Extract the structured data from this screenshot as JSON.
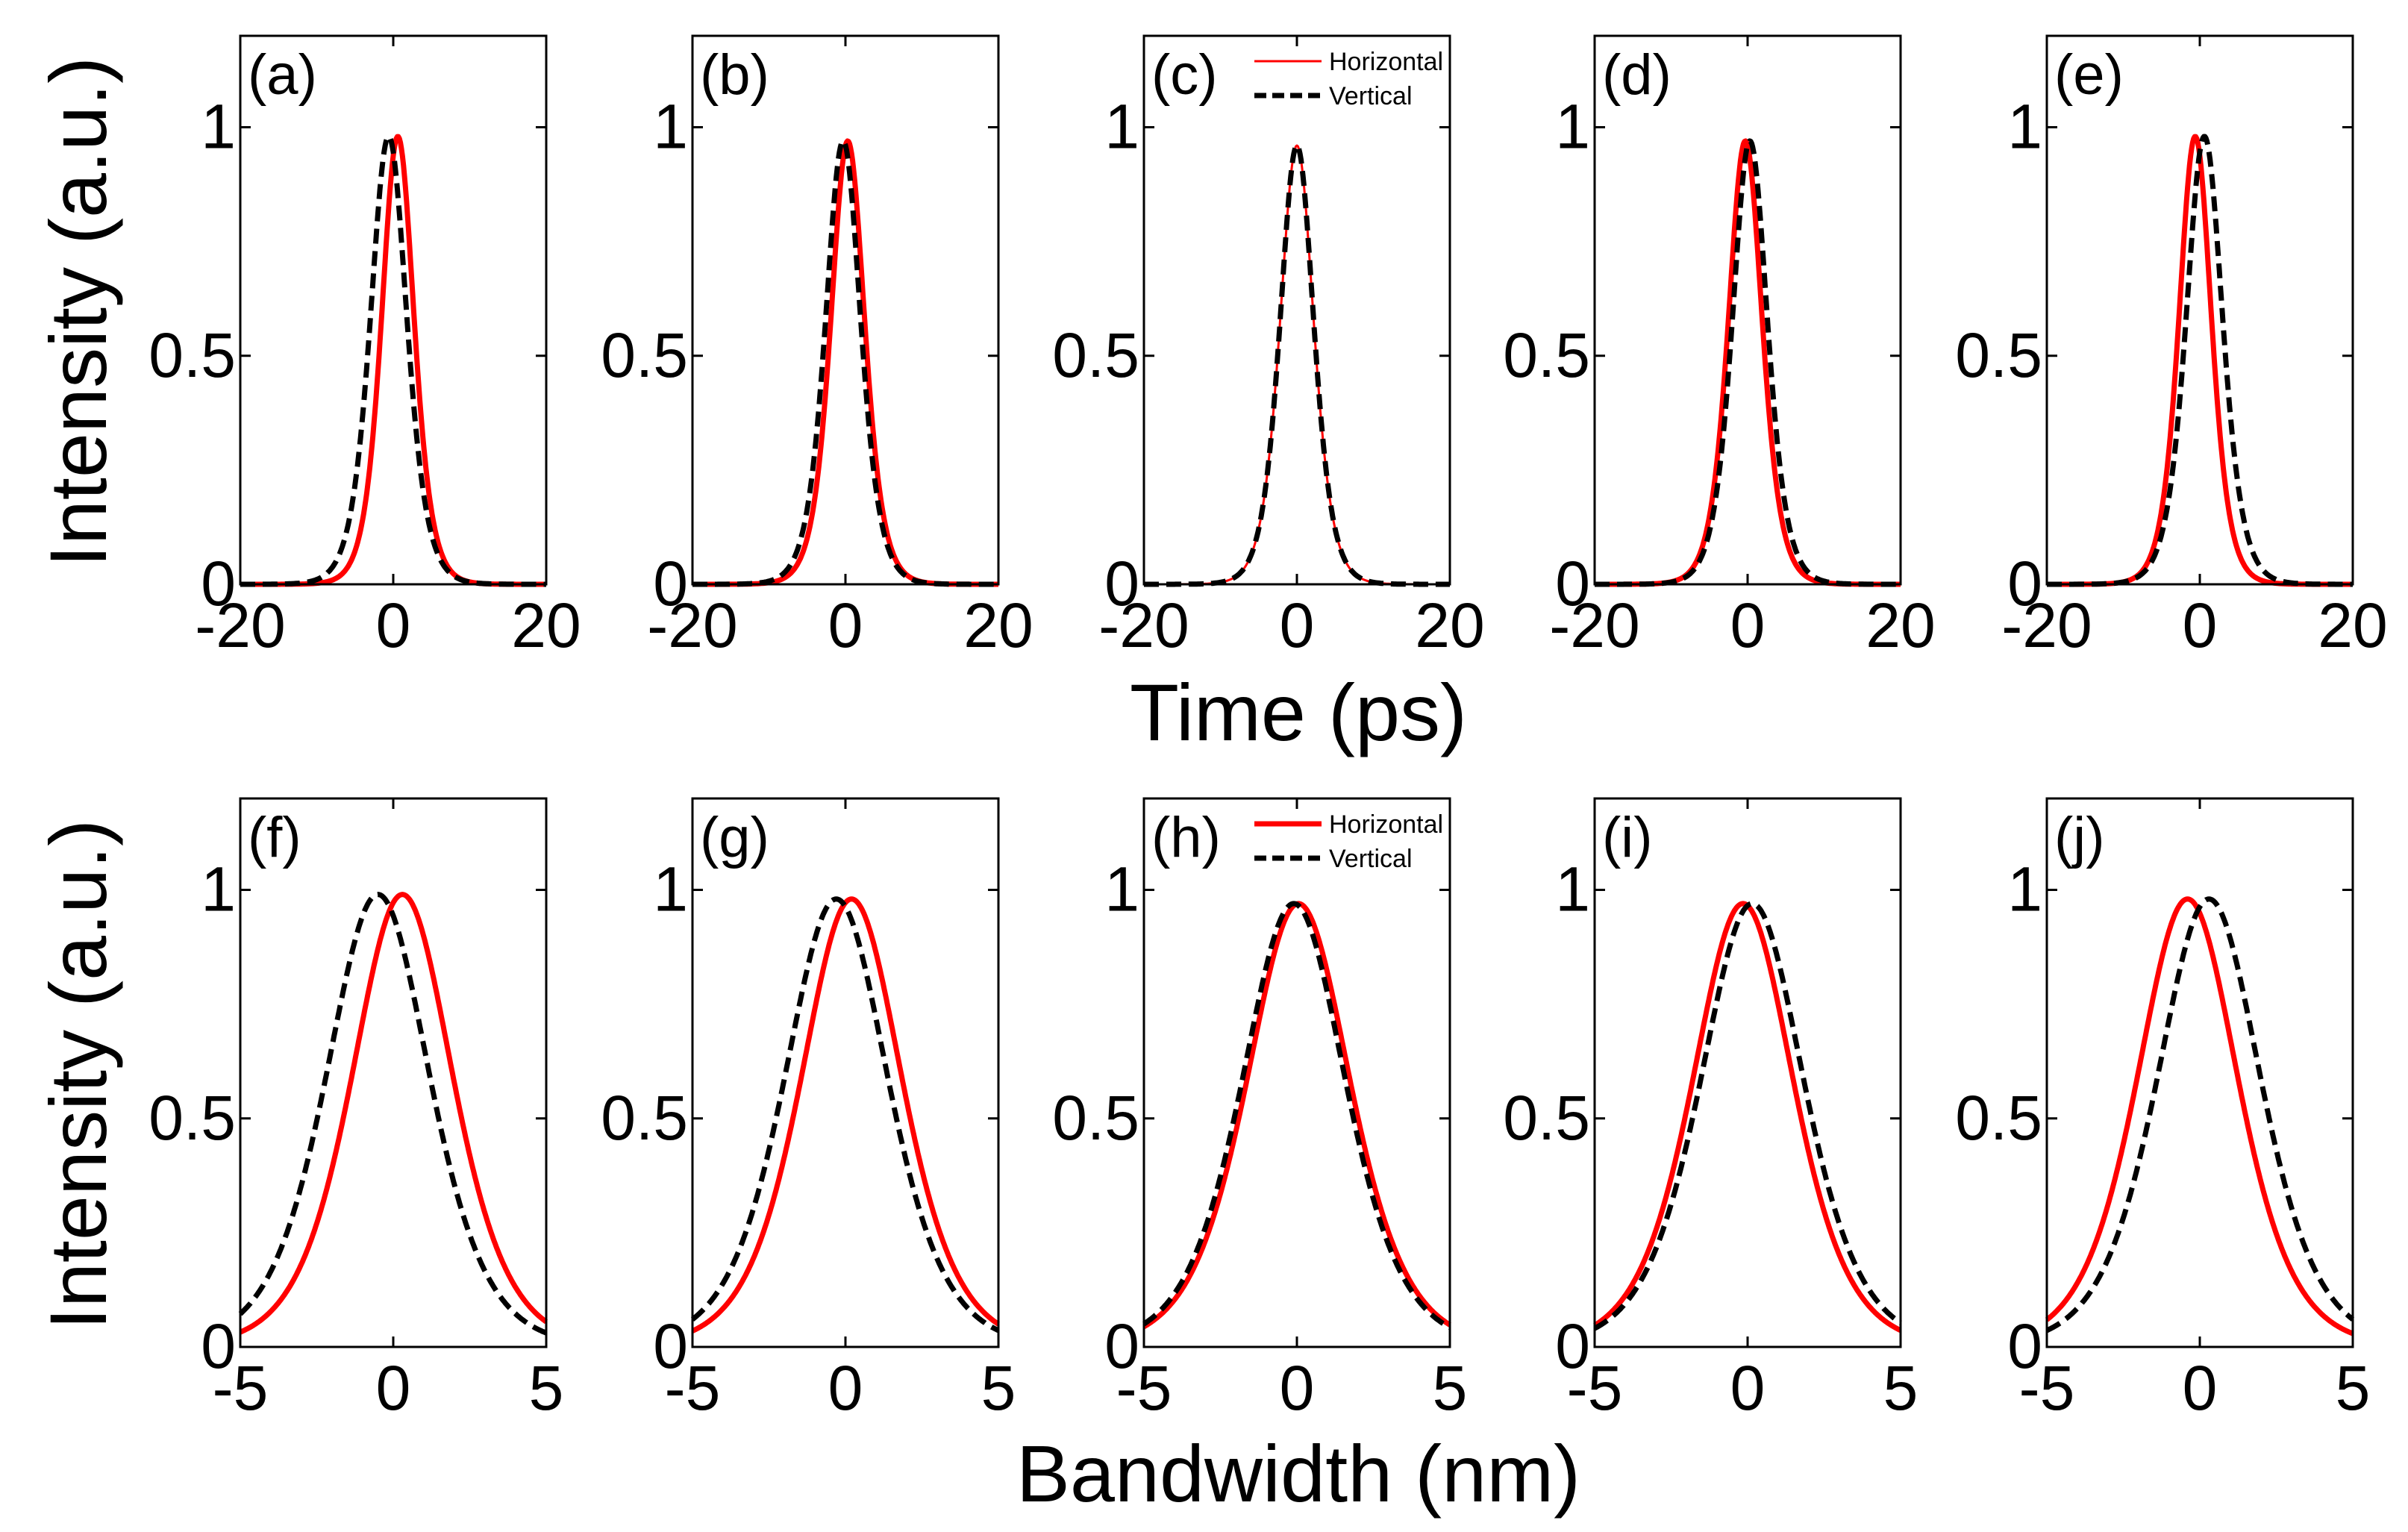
{
  "figure": {
    "ylabel": "Intensity (a.u.)",
    "row_xlabels": [
      "Time (ps)",
      "Bandwidth (nm)"
    ]
  },
  "colors": {
    "horizontal": "#ff0000",
    "vertical": "#000000"
  },
  "chart_data": [
    {
      "type": "line",
      "panel_label": "(a)",
      "row": 0,
      "xlim": [
        -20,
        20
      ],
      "ylim": [
        0,
        1.2
      ],
      "xticks": [
        -20,
        0,
        20
      ],
      "yticks": [
        0,
        0.5,
        1
      ],
      "ytick_labels": [
        "0",
        "0.5",
        "1"
      ],
      "xtick_labels": [
        "-20",
        "0",
        "20"
      ],
      "xlabel": "Time (ps)",
      "ylabel": "Intensity (a.u.)",
      "series": [
        {
          "name": "Horizontal",
          "style": "solid",
          "peak": 0.98,
          "center": 0.6,
          "width": 5.0,
          "shape": "sech2"
        },
        {
          "name": "Vertical",
          "style": "dashed",
          "peak": 0.98,
          "center": -0.6,
          "width": 5.6,
          "shape": "sech2"
        }
      ]
    },
    {
      "type": "line",
      "panel_label": "(b)",
      "row": 0,
      "xlim": [
        -20,
        20
      ],
      "ylim": [
        0,
        1.2
      ],
      "xticks": [
        -20,
        0,
        20
      ],
      "yticks": [
        0,
        0.5,
        1
      ],
      "ytick_labels": [
        "0",
        "0.5",
        "1"
      ],
      "xtick_labels": [
        "-20",
        "0",
        "20"
      ],
      "xlabel": "Time (ps)",
      "ylabel": "Intensity (a.u.)",
      "series": [
        {
          "name": "Horizontal",
          "style": "solid",
          "peak": 0.97,
          "center": 0.3,
          "width": 5.2,
          "shape": "sech2"
        },
        {
          "name": "Vertical",
          "style": "dashed",
          "peak": 0.97,
          "center": -0.3,
          "width": 5.4,
          "shape": "sech2"
        }
      ]
    },
    {
      "type": "line",
      "panel_label": "(c)",
      "row": 0,
      "xlim": [
        -20,
        20
      ],
      "ylim": [
        0,
        1.2
      ],
      "xticks": [
        -20,
        0,
        20
      ],
      "yticks": [
        0,
        0.5,
        1
      ],
      "ytick_labels": [
        "0",
        "0.5",
        "1"
      ],
      "xtick_labels": [
        "-20",
        "0",
        "20"
      ],
      "xlabel": "Time (ps)",
      "ylabel": "Intensity (a.u.)",
      "legend": {
        "placement": "top-right",
        "entries": [
          "Horizontal",
          "Vertical"
        ]
      },
      "series": [
        {
          "name": "Horizontal",
          "style": "solid-thin",
          "peak": 0.96,
          "center": 0.0,
          "width": 5.2,
          "shape": "sech2"
        },
        {
          "name": "Vertical",
          "style": "dashed",
          "peak": 0.96,
          "center": 0.0,
          "width": 5.2,
          "shape": "sech2"
        }
      ]
    },
    {
      "type": "line",
      "panel_label": "(d)",
      "row": 0,
      "xlim": [
        -20,
        20
      ],
      "ylim": [
        0,
        1.2
      ],
      "xticks": [
        -20,
        0,
        20
      ],
      "yticks": [
        0,
        0.5,
        1
      ],
      "ytick_labels": [
        "0",
        "0.5",
        "1"
      ],
      "xtick_labels": [
        "-20",
        "0",
        "20"
      ],
      "xlabel": "Time (ps)",
      "ylabel": "Intensity (a.u.)",
      "series": [
        {
          "name": "Horizontal",
          "style": "solid",
          "peak": 0.97,
          "center": -0.3,
          "width": 5.2,
          "shape": "sech2"
        },
        {
          "name": "Vertical",
          "style": "dashed",
          "peak": 0.97,
          "center": 0.3,
          "width": 5.4,
          "shape": "sech2"
        }
      ]
    },
    {
      "type": "line",
      "panel_label": "(e)",
      "row": 0,
      "xlim": [
        -20,
        20
      ],
      "ylim": [
        0,
        1.2
      ],
      "xticks": [
        -20,
        0,
        20
      ],
      "yticks": [
        0,
        0.5,
        1
      ],
      "ytick_labels": [
        "0",
        "0.5",
        "1"
      ],
      "xtick_labels": [
        "-20",
        "0",
        "20"
      ],
      "xlabel": "Time (ps)",
      "ylabel": "Intensity (a.u.)",
      "series": [
        {
          "name": "Horizontal",
          "style": "solid",
          "peak": 0.98,
          "center": -0.6,
          "width": 5.0,
          "shape": "sech2"
        },
        {
          "name": "Vertical",
          "style": "dashed",
          "peak": 0.98,
          "center": 0.6,
          "width": 5.6,
          "shape": "sech2"
        }
      ]
    },
    {
      "type": "line",
      "panel_label": "(f)",
      "row": 1,
      "xlim": [
        -5,
        5
      ],
      "ylim": [
        0,
        1.2
      ],
      "xticks": [
        -5,
        0,
        5
      ],
      "yticks": [
        0,
        0.5,
        1
      ],
      "ytick_labels": [
        "0",
        "0.5",
        "1"
      ],
      "xtick_labels": [
        "-5",
        "0",
        "5"
      ],
      "xlabel": "Bandwidth (nm)",
      "ylabel": "Intensity (a.u.)",
      "series": [
        {
          "name": "Horizontal",
          "style": "solid",
          "peak": 0.99,
          "center": 0.3,
          "width": 3.9,
          "shape": "sech2"
        },
        {
          "name": "Vertical",
          "style": "dashed",
          "peak": 0.99,
          "center": -0.5,
          "width": 4.0,
          "shape": "sech2"
        }
      ]
    },
    {
      "type": "line",
      "panel_label": "(g)",
      "row": 1,
      "xlim": [
        -5,
        5
      ],
      "ylim": [
        0,
        1.2
      ],
      "xticks": [
        -5,
        0,
        5
      ],
      "yticks": [
        0,
        0.5,
        1
      ],
      "ytick_labels": [
        "0",
        "0.5",
        "1"
      ],
      "xtick_labels": [
        "-5",
        "0",
        "5"
      ],
      "xlabel": "Bandwidth (nm)",
      "ylabel": "Intensity (a.u.)",
      "series": [
        {
          "name": "Horizontal",
          "style": "solid",
          "peak": 0.98,
          "center": 0.2,
          "width": 3.9,
          "shape": "sech2"
        },
        {
          "name": "Vertical",
          "style": "dashed",
          "peak": 0.98,
          "center": -0.3,
          "width": 4.0,
          "shape": "sech2"
        }
      ]
    },
    {
      "type": "line",
      "panel_label": "(h)",
      "row": 1,
      "xlim": [
        -5,
        5
      ],
      "ylim": [
        0,
        1.2
      ],
      "xticks": [
        -5,
        0,
        5
      ],
      "yticks": [
        0,
        0.5,
        1
      ],
      "ytick_labels": [
        "0",
        "0.5",
        "1"
      ],
      "xtick_labels": [
        "-5",
        "0",
        "5"
      ],
      "xlabel": "Bandwidth (nm)",
      "ylabel": "Intensity (a.u.)",
      "legend": {
        "placement": "top-right",
        "entries": [
          "Horizontal",
          "Vertical"
        ]
      },
      "series": [
        {
          "name": "Horizontal",
          "style": "solid",
          "peak": 0.97,
          "center": 0.05,
          "width": 4.0,
          "shape": "sech2"
        },
        {
          "name": "Vertical",
          "style": "dashed",
          "peak": 0.97,
          "center": -0.1,
          "width": 4.0,
          "shape": "sech2"
        }
      ]
    },
    {
      "type": "line",
      "panel_label": "(i)",
      "row": 1,
      "xlim": [
        -5,
        5
      ],
      "ylim": [
        0,
        1.2
      ],
      "xticks": [
        -5,
        0,
        5
      ],
      "yticks": [
        0,
        0.5,
        1
      ],
      "ytick_labels": [
        "0",
        "0.5",
        "1"
      ],
      "xtick_labels": [
        "-5",
        "0",
        "5"
      ],
      "xlabel": "Bandwidth (nm)",
      "ylabel": "Intensity (a.u.)",
      "series": [
        {
          "name": "Horizontal",
          "style": "solid",
          "peak": 0.97,
          "center": -0.15,
          "width": 3.9,
          "shape": "sech2"
        },
        {
          "name": "Vertical",
          "style": "dashed",
          "peak": 0.97,
          "center": 0.15,
          "width": 4.0,
          "shape": "sech2"
        }
      ]
    },
    {
      "type": "line",
      "panel_label": "(j)",
      "row": 1,
      "xlim": [
        -5,
        5
      ],
      "ylim": [
        0,
        1.2
      ],
      "xticks": [
        -5,
        0,
        5
      ],
      "yticks": [
        0,
        0.5,
        1
      ],
      "ytick_labels": [
        "0",
        "0.5",
        "1"
      ],
      "xtick_labels": [
        "-5",
        "0",
        "5"
      ],
      "xlabel": "Bandwidth (nm)",
      "ylabel": "Intensity (a.u.)",
      "series": [
        {
          "name": "Horizontal",
          "style": "solid",
          "peak": 0.98,
          "center": -0.4,
          "width": 3.9,
          "shape": "sech2"
        },
        {
          "name": "Vertical",
          "style": "dashed",
          "peak": 0.98,
          "center": 0.3,
          "width": 4.0,
          "shape": "sech2"
        }
      ]
    }
  ]
}
